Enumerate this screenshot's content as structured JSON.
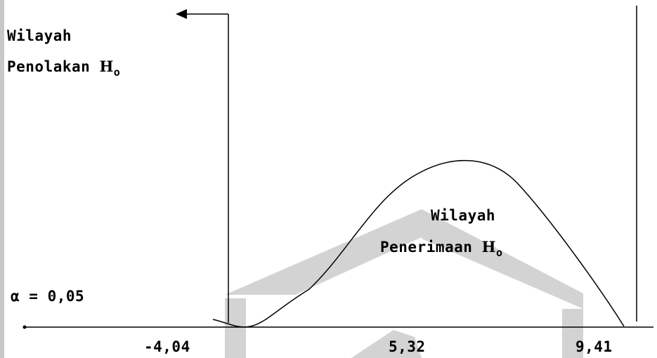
{
  "colors": {
    "ink": "#000000",
    "watermark": "#d3d3d3",
    "edge": "#c8c8c8"
  },
  "rejection_region": {
    "line1": "Wilayah",
    "line2": "Penolakan",
    "symbol": "H",
    "subscript": "o"
  },
  "acceptance_region": {
    "line1": "Wilayah",
    "line2": "Penerimaan",
    "symbol": "H",
    "subscript": "o"
  },
  "alpha_text": "α = 0,05",
  "axis_ticks": [
    "-4,04",
    "5,32",
    "9,41"
  ],
  "icons": {
    "arrow": "left-arrow-icon",
    "watermark": "logo-watermark"
  }
}
